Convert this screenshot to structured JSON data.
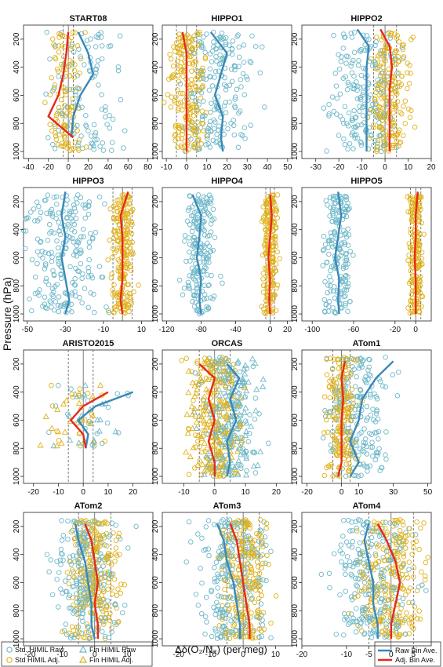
{
  "figure": {
    "ylabel": "Pressure (hPa)",
    "xlabel": "Δδ(O₂/N₂) (per meg)",
    "legend": {
      "std_raw": "Std. HIMIL Raw",
      "fin_raw": "Fin HIMIL Raw",
      "std_adj": "Std HIMIL Adj.",
      "fin_adj": "Fin HIMIL Adj.",
      "raw_bin": "Raw Bin Ave.",
      "adj_bin": "Adj. Bin Ave."
    },
    "colors": {
      "raw": "#6fb8c9",
      "adj": "#e0b21c",
      "raw_line": "#3a88b8",
      "adj_line": "#e8281a"
    }
  },
  "chart_data": [
    {
      "type": "scatter",
      "title": "START08",
      "xlim": [
        -45,
        85
      ],
      "xticks": [
        -40,
        -20,
        0,
        20,
        40,
        60,
        80
      ],
      "ylim": [
        1050,
        100
      ],
      "yticks": [
        200,
        400,
        600,
        800,
        1000
      ],
      "vlines_dashed": [
        -5,
        5
      ],
      "vline_solid": 0,
      "raw_bin": {
        "p": [
          150,
          300,
          450,
          600,
          750,
          900
        ],
        "v": [
          10,
          20,
          25,
          12,
          5,
          3
        ]
      },
      "adj_bin": {
        "p": [
          150,
          300,
          450,
          600,
          750,
          900
        ],
        "v": [
          0,
          -2,
          -5,
          -10,
          -20,
          5
        ]
      },
      "raw_center": 18,
      "raw_spread": 25,
      "adj_center": -3,
      "adj_spread": 12,
      "n": 110,
      "fin": false
    },
    {
      "type": "scatter",
      "title": "HIPPO1",
      "xlim": [
        -12,
        52
      ],
      "xticks": [
        -10,
        0,
        10,
        20,
        30,
        40,
        50
      ],
      "ylim": [
        1050,
        100
      ],
      "yticks": [
        200,
        400,
        600,
        800,
        1000
      ],
      "vlines_dashed": [
        -5,
        5
      ],
      "vline_solid": 0,
      "raw_bin": {
        "p": [
          150,
          300,
          450,
          600,
          750,
          900,
          1000
        ],
        "v": [
          12,
          20,
          17,
          14,
          18,
          17,
          18
        ]
      },
      "adj_bin": {
        "p": [
          150,
          300,
          450,
          600,
          750,
          900,
          1000
        ],
        "v": [
          -2,
          0,
          0,
          0,
          0,
          0,
          0
        ]
      },
      "raw_center": 15,
      "raw_spread": 12,
      "adj_center": 0,
      "adj_spread": 6,
      "n": 200,
      "fin": false
    },
    {
      "type": "scatter",
      "title": "HIPPO2",
      "xlim": [
        -36,
        20
      ],
      "xticks": [
        -30,
        -20,
        -10,
        0,
        10,
        20
      ],
      "ylim": [
        1050,
        100
      ],
      "yticks": [
        200,
        400,
        600,
        800,
        1000
      ],
      "vlines_dashed": [
        -5,
        5
      ],
      "vline_solid": 0,
      "raw_bin": {
        "p": [
          130,
          250,
          400,
          550,
          700,
          850,
          1000
        ],
        "v": [
          -12,
          -7,
          -8,
          -8,
          -8,
          -8,
          -8
        ]
      },
      "adj_bin": {
        "p": [
          130,
          250,
          400,
          550,
          700,
          850,
          1000
        ],
        "v": [
          -2,
          2,
          3,
          2,
          2,
          2,
          2
        ]
      },
      "raw_center": -8,
      "raw_spread": 10,
      "adj_center": 2,
      "adj_spread": 6,
      "n": 200,
      "fin": false
    },
    {
      "type": "scatter",
      "title": "HIPPO3",
      "xlim": [
        -52,
        16
      ],
      "xticks": [
        -50,
        -30,
        -10,
        10
      ],
      "ylim": [
        1050,
        100
      ],
      "yticks": [
        200,
        400,
        600,
        800,
        1000
      ],
      "vlines_dashed": [
        -5,
        5
      ],
      "vline_solid": 0,
      "raw_bin": {
        "p": [
          130,
          300,
          450,
          600,
          750,
          900,
          1000
        ],
        "v": [
          -30,
          -32,
          -30,
          -32,
          -30,
          -28,
          -30
        ]
      },
      "adj_bin": {
        "p": [
          130,
          300,
          450,
          600,
          750,
          900,
          1000
        ],
        "v": [
          3,
          -1,
          0,
          0,
          0,
          -1,
          0
        ]
      },
      "raw_center": -30,
      "raw_spread": 14,
      "adj_center": 0,
      "adj_spread": 4,
      "n": 220,
      "fin": false
    },
    {
      "type": "scatter",
      "title": "HIPPO4",
      "xlim": [
        -125,
        25
      ],
      "xticks": [
        -120,
        -80,
        -40,
        0,
        20
      ],
      "ylim": [
        1050,
        100
      ],
      "yticks": [
        200,
        400,
        600,
        800,
        1000
      ],
      "vlines_dashed": [
        -5,
        5
      ],
      "vline_solid": 0,
      "raw_bin": {
        "p": [
          150,
          300,
          450,
          600,
          750,
          900,
          1000
        ],
        "v": [
          -90,
          -80,
          -82,
          -85,
          -80,
          -82,
          -80
        ]
      },
      "adj_bin": {
        "p": [
          150,
          300,
          450,
          600,
          750,
          900,
          1000
        ],
        "v": [
          0,
          2,
          0,
          -2,
          0,
          -1,
          0
        ]
      },
      "raw_center": -82,
      "raw_spread": 12,
      "adj_center": 0,
      "adj_spread": 6,
      "n": 200,
      "fin": false
    },
    {
      "type": "scatter",
      "title": "HIPPO5",
      "xlim": [
        -110,
        15
      ],
      "xticks": [
        -100,
        -60,
        -20,
        0
      ],
      "ylim": [
        1050,
        100
      ],
      "yticks": [
        200,
        400,
        600,
        800,
        1000
      ],
      "vlines_dashed": [
        -5,
        5
      ],
      "vline_solid": 0,
      "raw_bin": {
        "p": [
          130,
          300,
          450,
          600,
          750,
          900,
          1000
        ],
        "v": [
          -75,
          -72,
          -75,
          -78,
          -74,
          -75,
          -74
        ]
      },
      "adj_bin": {
        "p": [
          130,
          300,
          450,
          600,
          750,
          900,
          1000
        ],
        "v": [
          2,
          0,
          0,
          -1,
          0,
          0,
          0
        ]
      },
      "raw_center": -75,
      "raw_spread": 10,
      "adj_center": 0,
      "adj_spread": 5,
      "n": 180,
      "fin": false
    },
    {
      "type": "scatter",
      "title": "ARISTO2015",
      "xlim": [
        -24,
        28
      ],
      "xticks": [
        -20,
        -10,
        0,
        10,
        20
      ],
      "ylim": [
        1050,
        100
      ],
      "yticks": [
        200,
        400,
        600,
        800,
        1000
      ],
      "vlines_dashed": [
        -6,
        4
      ],
      "vline_solid": 0,
      "raw_bin": {
        "p": [
          400,
          500,
          600,
          700,
          800
        ],
        "v": [
          20,
          5,
          -2,
          2,
          1
        ]
      },
      "adj_bin": {
        "p": [
          400,
          500,
          600,
          700,
          800
        ],
        "v": [
          10,
          0,
          -5,
          0,
          1
        ]
      },
      "raw_center": 2,
      "raw_spread": 10,
      "adj_center": -2,
      "adj_spread": 8,
      "n": 40,
      "fin": true,
      "pmin": 350,
      "pmax": 800
    },
    {
      "type": "scatter",
      "title": "ORCAS",
      "xlim": [
        -17,
        25
      ],
      "xticks": [
        -10,
        0,
        10,
        20
      ],
      "ylim": [
        1050,
        100
      ],
      "yticks": [
        200,
        400,
        600,
        800,
        1000
      ],
      "vlines_dashed": [
        -5,
        5
      ],
      "vline_solid": 0,
      "raw_bin": {
        "p": [
          200,
          300,
          450,
          600,
          750,
          900,
          1000
        ],
        "v": [
          4,
          8,
          5,
          7,
          4,
          5,
          4
        ]
      },
      "adj_bin": {
        "p": [
          200,
          300,
          450,
          600,
          750,
          900,
          1000
        ],
        "v": [
          -5,
          0,
          -2,
          0,
          -2,
          0,
          0
        ]
      },
      "raw_center": 5,
      "raw_spread": 6,
      "adj_center": 0,
      "adj_spread": 6,
      "n": 260,
      "fin": true
    },
    {
      "type": "scatter",
      "title": "ATom1",
      "xlim": [
        -23,
        52
      ],
      "xticks": [
        -20,
        0,
        10,
        30,
        50
      ],
      "ylim": [
        1050,
        100
      ],
      "yticks": [
        200,
        400,
        600,
        800,
        1000
      ],
      "vlines_dashed": [
        -5,
        5
      ],
      "vline_solid": 0,
      "raw_bin": {
        "p": [
          180,
          300,
          450,
          600,
          750,
          900,
          1000
        ],
        "v": [
          30,
          20,
          12,
          10,
          5,
          10,
          5
        ]
      },
      "adj_bin": {
        "p": [
          180,
          300,
          450,
          600,
          750,
          900,
          1000
        ],
        "v": [
          2,
          0,
          1,
          0,
          0,
          0,
          -2
        ]
      },
      "raw_center": 10,
      "raw_spread": 12,
      "adj_center": 0,
      "adj_spread": 6,
      "n": 200,
      "fin": false
    },
    {
      "type": "scatter",
      "title": "ATom2",
      "xlim": [
        -22,
        18
      ],
      "xticks": [
        -20,
        -10,
        0,
        10
      ],
      "ylim": [
        1050,
        100
      ],
      "yticks": [
        200,
        400,
        600,
        800,
        1000
      ],
      "vlines_dashed": [
        -5,
        5
      ],
      "vline_solid": 0,
      "raw_bin": {
        "p": [
          180,
          300,
          450,
          600,
          750,
          900,
          1000
        ],
        "v": [
          -6,
          -5,
          -3,
          -2,
          -1,
          -1,
          0
        ]
      },
      "adj_bin": {
        "p": [
          180,
          300,
          450,
          600,
          750,
          900,
          1000
        ],
        "v": [
          -3,
          -1,
          0,
          1,
          0,
          1,
          1
        ]
      },
      "raw_center": -2,
      "raw_spread": 7,
      "adj_center": 0,
      "adj_spread": 5,
      "n": 240,
      "fin": false
    },
    {
      "type": "scatter",
      "title": "ATom3",
      "xlim": [
        -25,
        15
      ],
      "xticks": [
        -20,
        -10,
        0,
        10
      ],
      "ylim": [
        1050,
        100
      ],
      "yticks": [
        200,
        400,
        600,
        800,
        1000
      ],
      "vlines_dashed": [
        -5,
        5
      ],
      "vline_solid": 0,
      "raw_bin": {
        "p": [
          180,
          300,
          450,
          600,
          750,
          900,
          1000
        ],
        "v": [
          -8,
          -6,
          -5,
          -3,
          -2,
          -1,
          -1
        ]
      },
      "adj_bin": {
        "p": [
          180,
          300,
          450,
          600,
          750,
          900,
          1000
        ],
        "v": [
          -4,
          -2,
          -1,
          0,
          1,
          2,
          2
        ]
      },
      "raw_center": -3,
      "raw_spread": 7,
      "adj_center": 0,
      "adj_spread": 5,
      "n": 240,
      "fin": false
    },
    {
      "type": "scatter",
      "title": "ATom4",
      "xlim": [
        -20,
        9
      ],
      "xticks": [
        -20,
        -10,
        -5,
        0,
        5
      ],
      "ylim": [
        1050,
        100
      ],
      "yticks": [
        200,
        400,
        600,
        800,
        1000
      ],
      "vlines_dashed": [
        -5,
        5
      ],
      "vline_solid": 0,
      "raw_bin": {
        "p": [
          180,
          300,
          450,
          600,
          750,
          900,
          1000
        ],
        "v": [
          -5,
          -6,
          -5,
          -4,
          -4,
          -3,
          -3
        ]
      },
      "adj_bin": {
        "p": [
          180,
          300,
          450,
          600,
          750,
          900,
          1000
        ],
        "v": [
          -3,
          -1,
          1,
          2,
          1,
          0,
          0
        ]
      },
      "raw_center": -4,
      "raw_spread": 6,
      "adj_center": 0,
      "adj_spread": 5,
      "n": 240,
      "fin": false
    }
  ]
}
